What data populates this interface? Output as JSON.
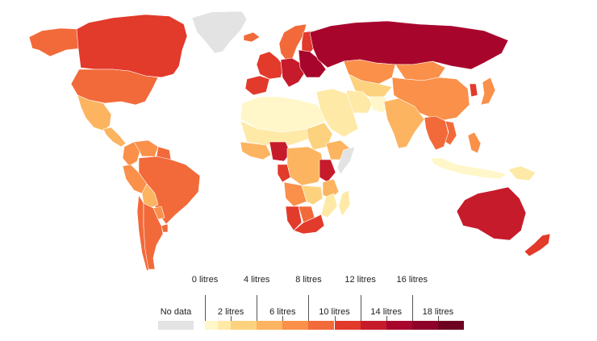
{
  "legend": {
    "no_data_label": "No data",
    "no_data_color": "#e3e3e3",
    "top_labels": [
      "0 litres",
      "4 litres",
      "8 litres",
      "12 litres",
      "16 litres"
    ],
    "bottom_labels": [
      "2 litres",
      "6 litres",
      "10 litres",
      "14 litres",
      "18 litres"
    ],
    "bins": [
      {
        "from": 0,
        "to": 1,
        "color": "#fff7c9"
      },
      {
        "from": 1,
        "to": 2,
        "color": "#fee9a6"
      },
      {
        "from": 2,
        "to": 4,
        "color": "#fdd27e"
      },
      {
        "from": 4,
        "to": 6,
        "color": "#fcb460"
      },
      {
        "from": 6,
        "to": 8,
        "color": "#fa9049"
      },
      {
        "from": 8,
        "to": 10,
        "color": "#f26a3a"
      },
      {
        "from": 10,
        "to": 12,
        "color": "#e23a2b"
      },
      {
        "from": 12,
        "to": 14,
        "color": "#c61b2b"
      },
      {
        "from": 14,
        "to": 16,
        "color": "#a8052d"
      },
      {
        "from": 16,
        "to": 18,
        "color": "#8e0128"
      },
      {
        "from": 18,
        "to": 20,
        "color": "#6e0020"
      }
    ]
  },
  "regions": [
    {
      "name": "Greenland",
      "value": null
    },
    {
      "name": "Alaska",
      "value": 9
    },
    {
      "name": "Canada",
      "value": 10.5
    },
    {
      "name": "United States",
      "value": 8.7
    },
    {
      "name": "Mexico",
      "value": 5
    },
    {
      "name": "Central America",
      "value": 5.5
    },
    {
      "name": "Venezuela",
      "value": 6
    },
    {
      "name": "Colombia",
      "value": 6
    },
    {
      "name": "Guyana",
      "value": 9
    },
    {
      "name": "Brazil",
      "value": 8.9
    },
    {
      "name": "Peru",
      "value": 6.5
    },
    {
      "name": "Bolivia",
      "value": 5.5
    },
    {
      "name": "Paraguay",
      "value": 6.5
    },
    {
      "name": "Chile",
      "value": 8
    },
    {
      "name": "Argentina",
      "value": 8.5
    },
    {
      "name": "Uruguay",
      "value": 9
    },
    {
      "name": "Iceland",
      "value": 9
    },
    {
      "name": "Scandinavia",
      "value": 8
    },
    {
      "name": "Finland",
      "value": 10.5
    },
    {
      "name": "Western Europe",
      "value": 11.5
    },
    {
      "name": "Iberia",
      "value": 11
    },
    {
      "name": "Central Europe",
      "value": 12
    },
    {
      "name": "Eastern Europe",
      "value": 15
    },
    {
      "name": "Russia",
      "value": 15.5
    },
    {
      "name": "Kazakhstan",
      "value": 7.5
    },
    {
      "name": "Central Asia",
      "value": 3
    },
    {
      "name": "Mongolia",
      "value": 6.5
    },
    {
      "name": "China",
      "value": 7
    },
    {
      "name": "Korea",
      "value": 10
    },
    {
      "name": "Japan",
      "value": 7.5
    },
    {
      "name": "Middle East",
      "value": 1
    },
    {
      "name": "Iran",
      "value": 1
    },
    {
      "name": "Afghanistan",
      "value": 0.5
    },
    {
      "name": "India",
      "value": 5
    },
    {
      "name": "Southeast Asia",
      "value": 9
    },
    {
      "name": "Vietnam",
      "value": 8
    },
    {
      "name": "Philippines",
      "value": 6.5
    },
    {
      "name": "Indonesia",
      "value": 0.6
    },
    {
      "name": "Papua New Guinea",
      "value": 1
    },
    {
      "name": "Australia",
      "value": 12.5
    },
    {
      "name": "New Zealand",
      "value": 10.7
    },
    {
      "name": "North Africa",
      "value": 0.5
    },
    {
      "name": "Sahel",
      "value": 1
    },
    {
      "name": "West Africa",
      "value": 5
    },
    {
      "name": "Nigeria",
      "value": 12
    },
    {
      "name": "Sudan",
      "value": 2
    },
    {
      "name": "Ethiopia",
      "value": 4
    },
    {
      "name": "Somalia",
      "value": null
    },
    {
      "name": "Central Africa",
      "value": 4
    },
    {
      "name": "Gabon",
      "value": 11
    },
    {
      "name": "Uganda",
      "value": 12
    },
    {
      "name": "Tanzania",
      "value": 5
    },
    {
      "name": "Angola",
      "value": 6
    },
    {
      "name": "Zambia",
      "value": 3
    },
    {
      "name": "Mozambique",
      "value": 1.5
    },
    {
      "name": "Namibia",
      "value": 10
    },
    {
      "name": "Botswana",
      "value": 8
    },
    {
      "name": "South Africa",
      "value": 11
    },
    {
      "name": "Madagascar",
      "value": 1
    }
  ]
}
